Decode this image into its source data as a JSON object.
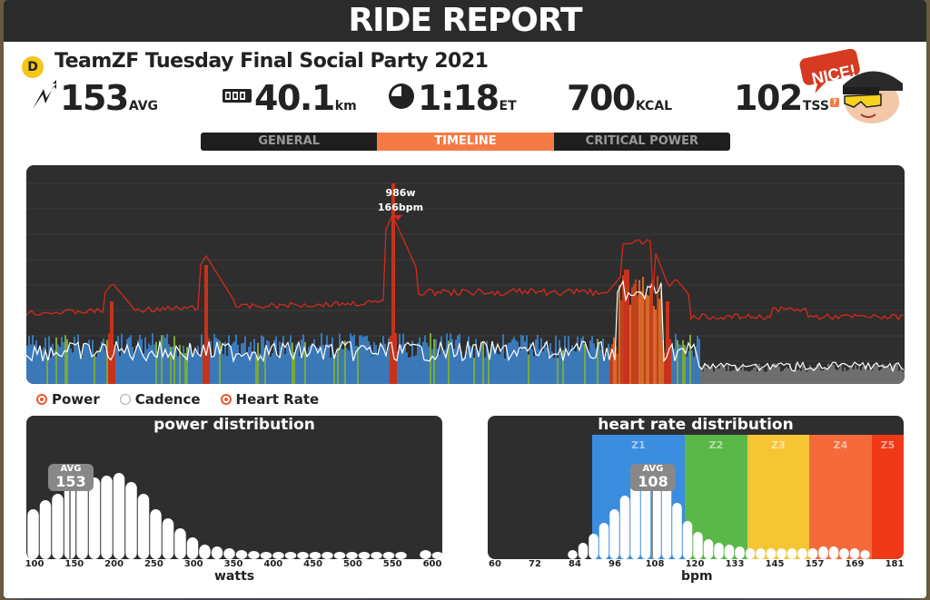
{
  "header": {
    "title": "RIDE REPORT"
  },
  "event": {
    "category_badge": "D",
    "name": "TeamZF Tuesday Final Social Party 2021"
  },
  "stats": {
    "power": {
      "value": "153",
      "unit": "AVG",
      "icon": "lightning-icon"
    },
    "distance": {
      "value": "40.1",
      "unit": "km",
      "icon": "odometer-icon"
    },
    "time": {
      "value": "1:18",
      "unit": "ET",
      "icon": "clock-icon"
    },
    "calories": {
      "value": "700",
      "unit": "KCAL"
    },
    "tss": {
      "value": "102",
      "unit": "TSS",
      "info": "?"
    }
  },
  "mascot": {
    "speech": "NICE!"
  },
  "tabs": [
    {
      "label": "GENERAL",
      "active": false
    },
    {
      "label": "TIMELINE",
      "active": true
    },
    {
      "label": "CRITICAL POWER",
      "active": false
    }
  ],
  "timeline": {
    "peak_power": "986w",
    "peak_hr": "166bpm"
  },
  "legend": {
    "power": "Power",
    "cadence": "Cadence",
    "heart_rate": "Heart Rate"
  },
  "power_distribution": {
    "title": "power distribution",
    "avg_label": "AVG",
    "avg_value": "153",
    "ticks": [
      "100",
      "150",
      "200",
      "250",
      "300",
      "350",
      "400",
      "450",
      "500",
      "550",
      "600"
    ],
    "axis_title": "watts"
  },
  "hr_distribution": {
    "title": "heart rate distribution",
    "avg_label": "AVG",
    "avg_value": "108",
    "zones": [
      {
        "label": "Z1",
        "color": "#3b8de0"
      },
      {
        "label": "Z2",
        "color": "#5ab848"
      },
      {
        "label": "Z3",
        "color": "#f5c534"
      },
      {
        "label": "Z4",
        "color": "#f46a3a"
      },
      {
        "label": "Z5",
        "color": "#f03a17"
      }
    ],
    "ticks": [
      "60",
      "72",
      "84",
      "96",
      "108",
      "120",
      "133",
      "145",
      "157",
      "169",
      "181"
    ],
    "axis_title": "bpm"
  },
  "colors": {
    "accent": "#f47b46",
    "hr_line": "#d42a1c",
    "panel_dark": "#2e2e2e"
  }
}
